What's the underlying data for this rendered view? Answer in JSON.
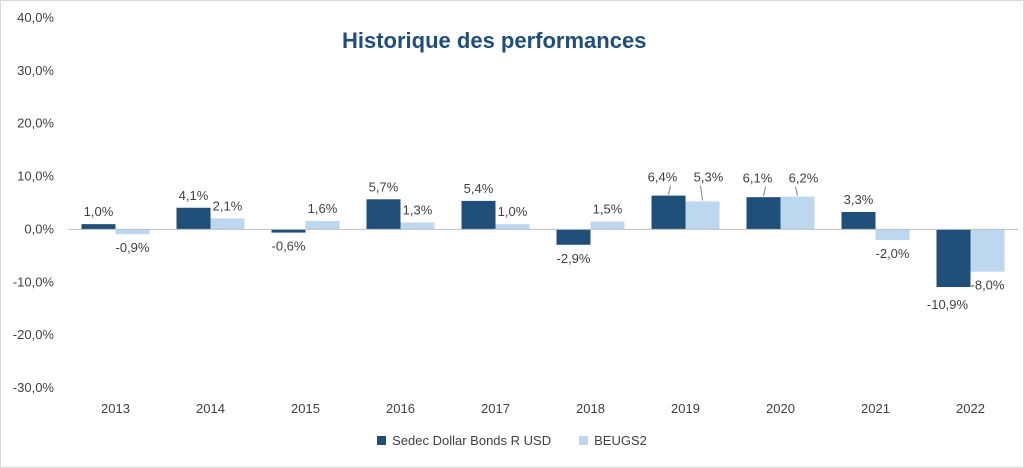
{
  "colors": {
    "series1": "#1f4e79",
    "series2": "#bdd7ee"
  },
  "chart_data": {
    "type": "bar",
    "title": "Historique des performances",
    "categories": [
      "2013",
      "2014",
      "2015",
      "2016",
      "2017",
      "2018",
      "2019",
      "2020",
      "2021",
      "2022"
    ],
    "series": [
      {
        "name": "Sedec Dollar Bonds R USD",
        "values": [
          1.0,
          4.1,
          -0.6,
          5.7,
          5.4,
          -2.9,
          6.4,
          6.1,
          3.3,
          -10.9
        ]
      },
      {
        "name": "BEUGS2",
        "values": [
          -0.9,
          2.1,
          1.6,
          1.3,
          1.0,
          1.5,
          5.3,
          6.2,
          -2.0,
          -8.0
        ]
      }
    ],
    "ylim": [
      -30,
      40
    ],
    "yticks": [
      -30,
      -20,
      -10,
      0,
      10,
      20,
      30,
      40
    ],
    "ytick_labels": [
      "-30,0%",
      "-20,0%",
      "-10,0%",
      "0,0%",
      "10,0%",
      "20,0%",
      "30,0%",
      "40,0%"
    ],
    "data_labels": [
      [
        "1,0%",
        "4,1%",
        "-0,6%",
        "5,7%",
        "5,4%",
        "-2,9%",
        "6,4%",
        "6,1%",
        "3,3%",
        "-10,9%"
      ],
      [
        "-0,9%",
        "2,1%",
        "1,6%",
        "1,3%",
        "1,0%",
        "1,5%",
        "5,3%",
        "6,2%",
        "-2,0%",
        "-8,0%"
      ]
    ],
    "legend_position": "bottom",
    "grid": false
  }
}
